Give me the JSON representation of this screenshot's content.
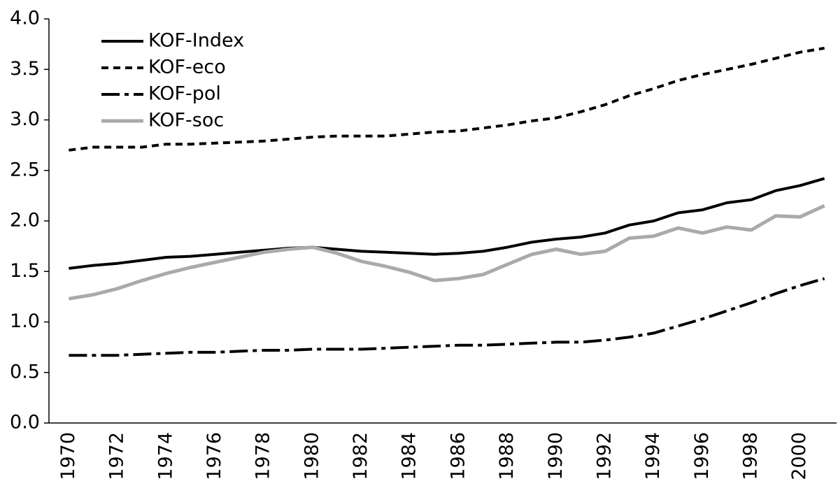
{
  "chart_data": {
    "type": "line",
    "categories": [
      "1970",
      null,
      "1972",
      null,
      "1974",
      null,
      "1976",
      null,
      "1978",
      null,
      "1980",
      null,
      "1982",
      null,
      "1984",
      null,
      "1986",
      null,
      "1988",
      null,
      "1990",
      null,
      "1992",
      null,
      "1994",
      null,
      "1996",
      null,
      "1998",
      null,
      "2000",
      null
    ],
    "series": [
      {
        "name": "KOF-Index",
        "color": "#000000",
        "dash": "none",
        "width": 4,
        "values": [
          1.53,
          1.56,
          1.58,
          1.61,
          1.64,
          1.65,
          1.67,
          1.69,
          1.71,
          1.73,
          1.74,
          1.72,
          1.7,
          1.69,
          1.68,
          1.67,
          1.68,
          1.7,
          1.74,
          1.79,
          1.82,
          1.84,
          1.88,
          1.96,
          2.0,
          2.08,
          2.11,
          2.18,
          2.21,
          2.3,
          2.35,
          2.42
        ]
      },
      {
        "name": "KOF-eco",
        "color": "#000000",
        "dash": "10 7",
        "width": 4,
        "values": [
          2.7,
          2.73,
          2.73,
          2.73,
          2.76,
          2.76,
          2.77,
          2.78,
          2.79,
          2.81,
          2.83,
          2.84,
          2.84,
          2.84,
          2.86,
          2.88,
          2.89,
          2.92,
          2.95,
          2.99,
          3.02,
          3.08,
          3.15,
          3.24,
          3.31,
          3.39,
          3.45,
          3.5,
          3.55,
          3.61,
          3.67,
          3.71
        ]
      },
      {
        "name": "KOF-pol",
        "color": "#000000",
        "dash": "26 7 6 7",
        "width": 4,
        "values": [
          0.67,
          0.67,
          0.67,
          0.68,
          0.69,
          0.7,
          0.7,
          0.71,
          0.72,
          0.72,
          0.73,
          0.73,
          0.73,
          0.74,
          0.75,
          0.76,
          0.77,
          0.77,
          0.78,
          0.79,
          0.8,
          0.8,
          0.82,
          0.85,
          0.89,
          0.96,
          1.03,
          1.11,
          1.19,
          1.28,
          1.36,
          1.43
        ]
      },
      {
        "name": "KOF-soc",
        "color": "#aaaaaa",
        "dash": "none",
        "width": 5,
        "values": [
          1.23,
          1.27,
          1.33,
          1.41,
          1.48,
          1.54,
          1.59,
          1.64,
          1.69,
          1.72,
          1.74,
          1.68,
          1.6,
          1.55,
          1.49,
          1.41,
          1.43,
          1.47,
          1.57,
          1.67,
          1.72,
          1.67,
          1.7,
          1.83,
          1.85,
          1.93,
          1.88,
          1.94,
          1.91,
          2.05,
          2.04,
          2.15
        ]
      }
    ],
    "ylim": [
      0,
      4
    ],
    "yticks": [
      {
        "value": 0,
        "label": "0.0"
      },
      {
        "value": 0.5,
        "label": "0.5"
      },
      {
        "value": 1,
        "label": "1.0"
      },
      {
        "value": 1.5,
        "label": "1.5"
      },
      {
        "value": 2,
        "label": "2.0"
      },
      {
        "value": 2.5,
        "label": "2.5"
      },
      {
        "value": 3,
        "label": "3.0"
      },
      {
        "value": 3.5,
        "label": "3.5"
      },
      {
        "value": 4,
        "label": "4.0"
      }
    ],
    "grid": false,
    "legend": "top-left"
  }
}
